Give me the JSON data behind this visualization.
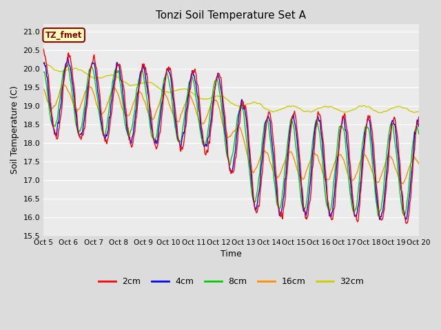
{
  "title": "Tonzi Soil Temperature Set A",
  "xlabel": "Time",
  "ylabel": "Soil Temperature (C)",
  "ylim": [
    15.5,
    21.2
  ],
  "annotation_text": "TZ_fmet",
  "annotation_color": "#8B0000",
  "annotation_bg": "#FFFFC0",
  "annotation_border": "#8B0000",
  "legend_labels": [
    "2cm",
    "4cm",
    "8cm",
    "16cm",
    "32cm"
  ],
  "line_colors": [
    "#FF0000",
    "#0000FF",
    "#00CC00",
    "#FF8C00",
    "#CCCC00"
  ],
  "xtick_labels": [
    "Oct 5",
    "Oct 6",
    "Oct 7",
    "Oct 8",
    "Oct 9",
    "Oct 10",
    "Oct 11",
    "Oct 12",
    "Oct 13",
    "Oct 14",
    "Oct 15",
    "Oct 16",
    "Oct 17",
    "Oct 18",
    "Oct 19",
    "Oct 20"
  ],
  "bg_color": "#DCDCDC",
  "plot_bg": "#EBEBEB"
}
